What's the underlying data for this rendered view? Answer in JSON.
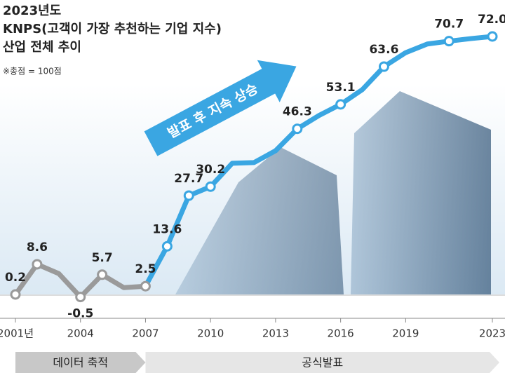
{
  "chart_data": {
    "type": "line",
    "title": "2023년도",
    "subtitle": [
      "KNPS(고객이 가장 추천하는 기업 지수)",
      "산업 전체 추이"
    ],
    "note": "※총점 = 100점",
    "annotation": "발표 후 지속 상승",
    "x": [
      2001,
      2002,
      2003,
      2004,
      2005,
      2006,
      2007,
      2008,
      2009,
      2010,
      2011,
      2012,
      2013,
      2014,
      2015,
      2016,
      2017,
      2018,
      2019,
      2020,
      2021,
      2022,
      2023
    ],
    "values": [
      0.2,
      8.6,
      6.0,
      -0.5,
      5.7,
      2.1,
      2.5,
      13.6,
      27.7,
      30.2,
      36.7,
      36.9,
      40.2,
      46.3,
      50.0,
      53.1,
      57.2,
      63.6,
      67.5,
      69.9,
      70.7,
      71.4,
      72.0
    ],
    "value_labels": [
      "0.2",
      "8.6",
      null,
      "-0.5",
      "5.7",
      null,
      "2.5",
      "13.6",
      "27.7",
      "30.2",
      null,
      null,
      null,
      "46.3",
      null,
      "53.1",
      null,
      "63.6",
      null,
      null,
      "70.7",
      null,
      "72.0"
    ],
    "phases": [
      {
        "label": "데이터 축적",
        "start": 2001,
        "end": 2007,
        "color": "#9a9a9a"
      },
      {
        "label": "공식발표",
        "start": 2007,
        "end": 2023,
        "color": "#3aa6e2"
      }
    ],
    "xlim": [
      2001,
      2023
    ],
    "xticks": [
      {
        "value": 2001,
        "label": "2001년"
      },
      2004,
      2007,
      2010,
      2013,
      2016,
      2019,
      2023
    ],
    "ylim": [
      -3,
      80
    ]
  }
}
